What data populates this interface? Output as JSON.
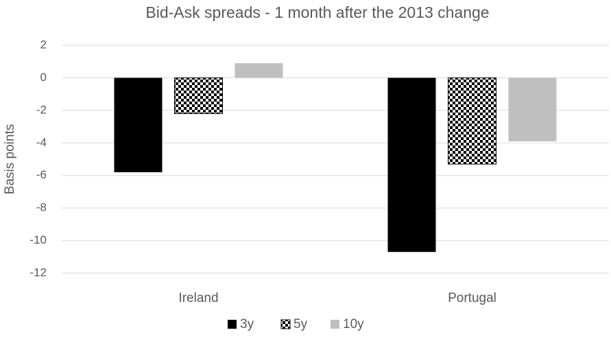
{
  "chart_data": {
    "type": "bar",
    "title": "Bid-Ask spreads - 1 month after the 2013 change",
    "y_label": "Basis points",
    "categories": [
      "Ireland",
      "Portugal"
    ],
    "series": [
      {
        "name": "3y",
        "color": "#000000",
        "values": [
          -5.8,
          -10.7
        ]
      },
      {
        "name": "5y",
        "color": "#000000",
        "pattern": "checker",
        "values": [
          -2.2,
          -5.3
        ]
      },
      {
        "name": "10y",
        "color": "#bfbfbf",
        "values": [
          0.9,
          -3.9
        ]
      }
    ],
    "ylim": [
      -12,
      2
    ],
    "yticks": [
      -12,
      -10,
      -8,
      -6,
      -4,
      -2,
      0,
      2
    ],
    "grid": true,
    "legend": "bottom"
  }
}
